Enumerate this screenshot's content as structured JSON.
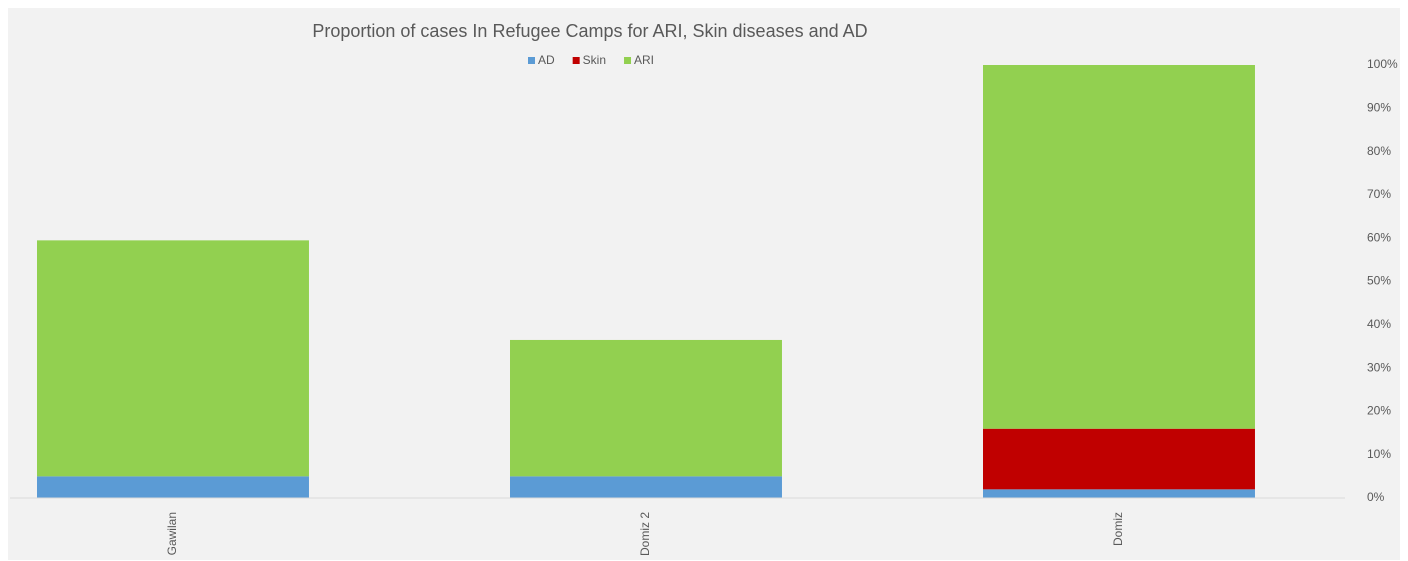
{
  "chart_data": {
    "type": "stacked_bar",
    "title": "Proportion of cases In Refugee Camps for ARI, Skin diseases and AD",
    "categories": [
      "Gawilan",
      "Domiz 2",
      "Domiz"
    ],
    "series": [
      {
        "name": "AD",
        "color": "#5b9bd5",
        "values": [
          5,
          5,
          2
        ]
      },
      {
        "name": "Skin",
        "color": "#c00000",
        "values": [
          0,
          0,
          14
        ]
      },
      {
        "name": "ARI",
        "color": "#92d050",
        "values": [
          54.5,
          31.5,
          84
        ]
      }
    ],
    "ylim": [
      0,
      100
    ],
    "yticks": [
      {
        "value": 0,
        "label": "0%"
      },
      {
        "value": 10,
        "label": "10%"
      },
      {
        "value": 20,
        "label": "20%"
      },
      {
        "value": 30,
        "label": "30%"
      },
      {
        "value": 40,
        "label": "40%"
      },
      {
        "value": 50,
        "label": "50%"
      },
      {
        "value": 60,
        "label": "60%"
      },
      {
        "value": 70,
        "label": "70%"
      },
      {
        "value": 80,
        "label": "80%"
      },
      {
        "value": 90,
        "label": "90%"
      },
      {
        "value": 100,
        "label": "100%"
      }
    ],
    "y_axis_side": "right",
    "legend": "top",
    "grid": false
  }
}
